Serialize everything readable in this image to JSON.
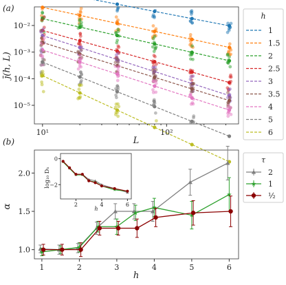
{
  "chart_data": [
    {
      "id": "a",
      "type": "scatter",
      "panel_label": "(a)",
      "xlabel": "L",
      "ylabel": "j̄(h, L)",
      "xscale": "log",
      "yscale": "log",
      "xlim": [
        8.6,
        380
      ],
      "ylim": [
        2e-06,
        0.05
      ],
      "x_tick_labels": [
        "10¹",
        "10²"
      ],
      "y_tick_labels": [
        "10⁻⁵",
        "10⁻⁴",
        "10⁻³",
        "10⁻²"
      ],
      "legend": {
        "title": "h",
        "position": "right-outside"
      },
      "x_samples": [
        10,
        20,
        40,
        80,
        160,
        320
      ],
      "series": [
        {
          "name": "1",
          "color": "#1f77b4",
          "c": 0.22,
          "alpha": 0.9,
          "x_start": 20
        },
        {
          "name": "1.5",
          "color": "#ff7f0e",
          "c": 0.048,
          "alpha": 1.0,
          "x_start": 10
        },
        {
          "name": "2",
          "color": "#2ca02c",
          "c": 0.018,
          "alpha": 1.05,
          "x_start": 10
        },
        {
          "name": "2.5",
          "color": "#d62728",
          "c": 0.0065,
          "alpha": 1.3,
          "x_start": 10
        },
        {
          "name": "3",
          "color": "#9467bd",
          "c": 0.0042,
          "alpha": 1.5,
          "x_start": 10
        },
        {
          "name": "3.5",
          "color": "#8c564b",
          "c": 0.0023,
          "alpha": 1.45,
          "x_start": 10
        },
        {
          "name": "4",
          "color": "#e377c2",
          "c": 0.0012,
          "alpha": 1.5,
          "x_start": 10
        },
        {
          "name": "5",
          "color": "#7f7f7f",
          "c": 0.00042,
          "alpha": 1.85,
          "x_start": 10
        },
        {
          "name": "6",
          "color": "#bcbd22",
          "c": 0.00013,
          "alpha": 2.15,
          "x_start": 10
        }
      ]
    },
    {
      "id": "b",
      "type": "line",
      "panel_label": "(b)",
      "xlabel": "h",
      "ylabel": "α",
      "xlim": [
        0.8,
        6.25
      ],
      "ylim": [
        0.88,
        2.3
      ],
      "x_ticks": [
        1,
        2,
        3,
        4,
        5,
        6
      ],
      "x_tick_labels": [
        "1",
        "2",
        "3",
        "4",
        "5",
        "6"
      ],
      "y_ticks": [
        1.0,
        1.5,
        2.0
      ],
      "y_tick_labels": [
        "1.0",
        "1.5",
        "2.0"
      ],
      "legend": {
        "title": "τ",
        "position": "right-outside"
      },
      "x": [
        1,
        1.5,
        2,
        2.5,
        3,
        3.5,
        4,
        5,
        6
      ],
      "series": [
        {
          "name": "2",
          "color": "#7f7f7f",
          "marker": "triangle",
          "values": [
            1.01,
            1.0,
            1.02,
            1.28,
            1.5,
            1.5,
            1.5,
            1.88,
            2.13
          ],
          "errors": [
            0.05,
            0.06,
            0.06,
            0.08,
            0.1,
            0.1,
            0.13,
            0.17,
            0.22
          ]
        },
        {
          "name": "1",
          "color": "#2ca02c",
          "marker": "star",
          "values": [
            0.97,
            1.0,
            1.03,
            1.3,
            1.3,
            1.48,
            1.55,
            1.45,
            1.72
          ],
          "errors": [
            0.05,
            0.05,
            0.06,
            0.07,
            0.1,
            0.1,
            0.12,
            0.18,
            0.22
          ]
        },
        {
          "name": "½",
          "color": "#8b0000",
          "marker": "circle",
          "values": [
            1.0,
            1.0,
            1.0,
            1.28,
            1.28,
            1.28,
            1.42,
            1.48,
            1.5
          ],
          "errors": [
            0.07,
            0.07,
            0.09,
            0.09,
            0.09,
            0.12,
            0.12,
            0.16,
            0.2
          ]
        }
      ],
      "inset": {
        "xlabel": "h",
        "ylabel": "log₁₀ Dₕ",
        "xlim": [
          0.8,
          6.3
        ],
        "ylim": [
          -3.1,
          0.4
        ],
        "x_ticks": [
          2,
          4,
          6
        ],
        "x_tick_labels": [
          "2",
          "4",
          "6"
        ],
        "y_ticks": [
          0,
          -2
        ],
        "y_tick_labels": [
          "0",
          "−2"
        ],
        "x": [
          1,
          1.5,
          2,
          2.5,
          3,
          3.5,
          4,
          5,
          6
        ],
        "series": [
          {
            "name": "2",
            "color": "#7f7f7f",
            "values": [
              -0.2,
              -0.7,
              -1.2,
              -1.2,
              -1.6,
              -1.7,
              -2.0,
              -2.3,
              -2.6
            ]
          },
          {
            "name": "1",
            "color": "#2ca02c",
            "values": [
              -0.25,
              -0.75,
              -1.25,
              -1.25,
              -1.7,
              -1.8,
              -2.1,
              -2.4,
              -2.5
            ]
          },
          {
            "name": "½",
            "color": "#8b0000",
            "values": [
              -0.2,
              -0.7,
              -1.2,
              -1.2,
              -1.7,
              -1.85,
              -2.1,
              -2.3,
              -2.5
            ]
          }
        ]
      }
    }
  ]
}
